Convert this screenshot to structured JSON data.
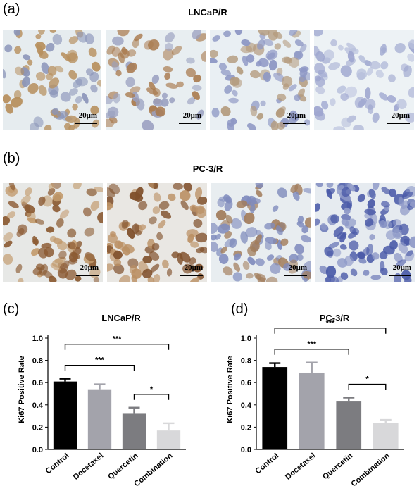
{
  "panels": {
    "a": {
      "letter": "(a)",
      "title": "LNCaP/R"
    },
    "b": {
      "letter": "(b)",
      "title": "PC-3/R"
    },
    "c": {
      "letter": "(c)"
    },
    "d": {
      "letter": "(d)"
    }
  },
  "scalebar_label": "20μm",
  "micrographs": {
    "a": [
      {
        "name": "lncap-control",
        "bg": "#e6ecef",
        "nucleus": "#b7905f",
        "nucleus2": "#8a94b8",
        "density": 70,
        "seed": 11
      },
      {
        "name": "lncap-docetaxel",
        "bg": "#e8eef1",
        "nucleus": "#a97a4e",
        "nucleus2": "#9aa0c0",
        "density": 62,
        "seed": 23
      },
      {
        "name": "lncap-quercetin",
        "bg": "#e9eff3",
        "nucleus": "#8d97c4",
        "nucleus2": "#b39a7c",
        "density": 80,
        "seed": 37
      },
      {
        "name": "lncap-combination",
        "bg": "#edf2f5",
        "nucleus": "#9ea6cf",
        "nucleus2": "#b8c0dc",
        "density": 60,
        "seed": 41
      }
    ],
    "b": [
      {
        "name": "pc3-control",
        "bg": "#e7e8e6",
        "nucleus": "#8b5a32",
        "nucleus2": "#c29a6c",
        "density": 80,
        "seed": 53
      },
      {
        "name": "pc3-docetaxel",
        "bg": "#e9e7e3",
        "nucleus": "#80502b",
        "nucleus2": "#bb9064",
        "density": 85,
        "seed": 61
      },
      {
        "name": "pc3-quercetin",
        "bg": "#e8edf0",
        "nucleus": "#7f8bbd",
        "nucleus2": "#a27d5c",
        "density": 90,
        "seed": 71
      },
      {
        "name": "pc3-combination",
        "bg": "#e6ebf0",
        "nucleus": "#4a5aa8",
        "nucleus2": "#8f9ac8",
        "density": 110,
        "seed": 83
      }
    ]
  },
  "chart_data": [
    {
      "type": "bar",
      "title": "LNCaP/R",
      "ylabel": "Ki67 Positive Rate",
      "categories": [
        "Control",
        "Docetaxel",
        "Quercetin",
        "Combination"
      ],
      "values": [
        0.61,
        0.54,
        0.32,
        0.17
      ],
      "errors": [
        0.025,
        0.045,
        0.055,
        0.065
      ],
      "colors": [
        "#000000",
        "#a3a3ab",
        "#7c7c80",
        "#d8d8da"
      ],
      "ylim": [
        0,
        1.0
      ],
      "yticks": [
        "0.0",
        "0.2",
        "0.4",
        "0.6",
        "0.8",
        "1.0"
      ],
      "significance": [
        {
          "from": 0,
          "to": 3,
          "label": "***"
        },
        {
          "from": 0,
          "to": 2,
          "label": "***"
        },
        {
          "from": 2,
          "to": 3,
          "label": "*"
        }
      ]
    },
    {
      "type": "bar",
      "title": "PC-3/R",
      "ylabel": "Ki67 Positive Rate",
      "categories": [
        "Control",
        "Docetaxel",
        "Quercetin",
        "Combination"
      ],
      "values": [
        0.74,
        0.69,
        0.43,
        0.24
      ],
      "errors": [
        0.035,
        0.09,
        0.035,
        0.025
      ],
      "colors": [
        "#000000",
        "#a3a3ab",
        "#7c7c80",
        "#d8d8da"
      ],
      "ylim": [
        0,
        1.0
      ],
      "yticks": [
        "0.0",
        "0.2",
        "0.4",
        "0.6",
        "0.8",
        "1.0"
      ],
      "significance": [
        {
          "from": 0,
          "to": 3,
          "label": "***"
        },
        {
          "from": 0,
          "to": 2,
          "label": "***"
        },
        {
          "from": 2,
          "to": 3,
          "label": "*"
        }
      ]
    }
  ]
}
